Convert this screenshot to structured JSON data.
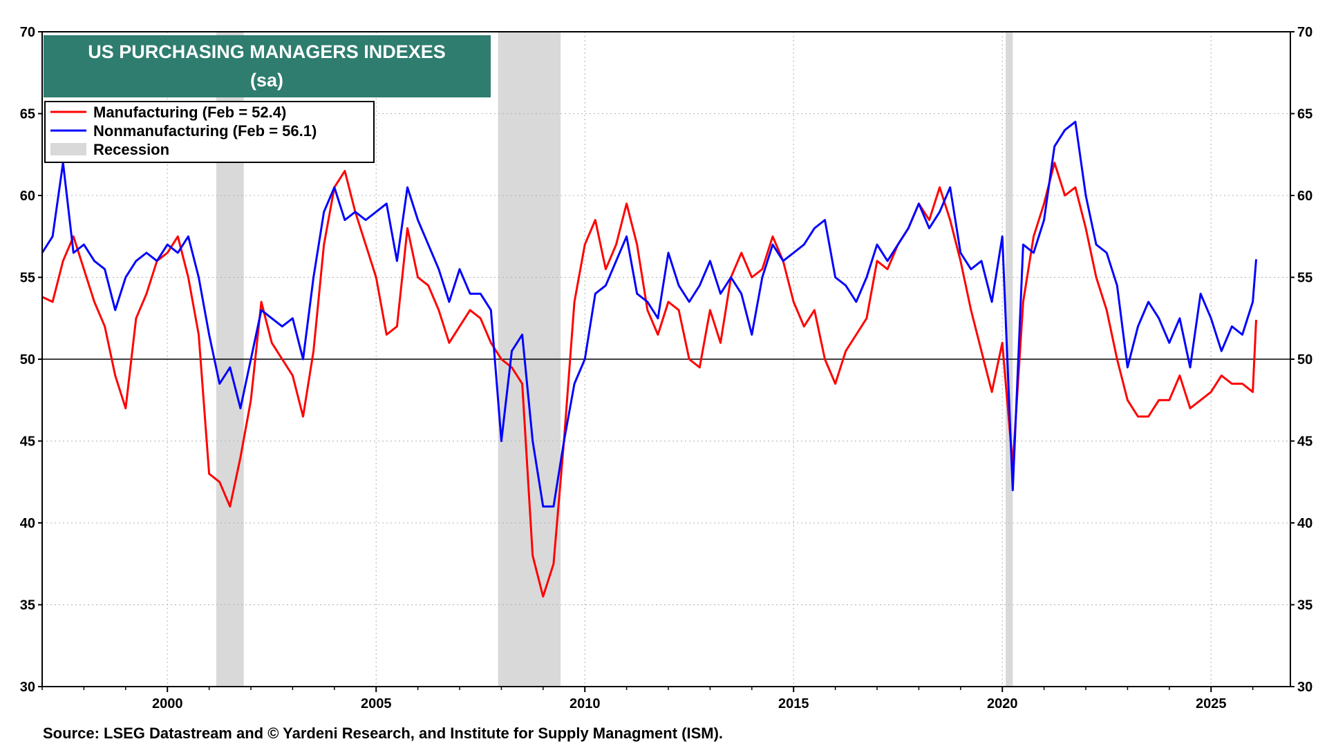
{
  "chart_data": {
    "type": "line",
    "title": "US PURCHASING MANAGERS INDEXES",
    "subtitle": "(sa)",
    "source": "Source: LSEG Datastream and © Yardeni Research, and Institute for Supply Managment (ISM).",
    "ylim": [
      30,
      70
    ],
    "y_ticks": [
      30,
      35,
      40,
      45,
      50,
      55,
      60,
      65,
      70
    ],
    "xlim": [
      1997.0,
      2026.9
    ],
    "x_ticks": [
      2000,
      2005,
      2010,
      2015,
      2020,
      2025
    ],
    "reference_line": 50,
    "grid": true,
    "legend_position": "top-left",
    "legend": [
      {
        "label": "Manufacturing (Feb = 52.4)",
        "color": "#ff0000",
        "kind": "line"
      },
      {
        "label": "Nonmanufacturing  (Feb = 56.1)",
        "color": "#0000ff",
        "kind": "line"
      },
      {
        "label": "Recession",
        "color": "#d9d9d9",
        "kind": "band"
      }
    ],
    "recessions": [
      [
        2001.17,
        2001.83
      ],
      [
        2007.92,
        2009.42
      ],
      [
        2020.08,
        2020.25
      ]
    ],
    "series": [
      {
        "name": "Manufacturing",
        "color": "#ff0000",
        "x": [
          1997.0,
          1997.25,
          1997.5,
          1997.75,
          1998.0,
          1998.25,
          1998.5,
          1998.75,
          1999.0,
          1999.25,
          1999.5,
          1999.75,
          2000.0,
          2000.25,
          2000.5,
          2000.75,
          2001.0,
          2001.25,
          2001.5,
          2001.75,
          2002.0,
          2002.25,
          2002.5,
          2002.75,
          2003.0,
          2003.25,
          2003.5,
          2003.75,
          2004.0,
          2004.25,
          2004.5,
          2004.75,
          2005.0,
          2005.25,
          2005.5,
          2005.75,
          2006.0,
          2006.25,
          2006.5,
          2006.75,
          2007.0,
          2007.25,
          2007.5,
          2007.75,
          2008.0,
          2008.25,
          2008.5,
          2008.75,
          2009.0,
          2009.25,
          2009.5,
          2009.75,
          2010.0,
          2010.25,
          2010.5,
          2010.75,
          2011.0,
          2011.25,
          2011.5,
          2011.75,
          2012.0,
          2012.25,
          2012.5,
          2012.75,
          2013.0,
          2013.25,
          2013.5,
          2013.75,
          2014.0,
          2014.25,
          2014.5,
          2014.75,
          2015.0,
          2015.25,
          2015.5,
          2015.75,
          2016.0,
          2016.25,
          2016.5,
          2016.75,
          2017.0,
          2017.25,
          2017.5,
          2017.75,
          2018.0,
          2018.25,
          2018.5,
          2018.75,
          2019.0,
          2019.25,
          2019.5,
          2019.75,
          2020.0,
          2020.25,
          2020.5,
          2020.75,
          2021.0,
          2021.25,
          2021.5,
          2021.75,
          2022.0,
          2022.25,
          2022.5,
          2022.75,
          2023.0,
          2023.25,
          2023.5,
          2023.75,
          2024.0,
          2024.25,
          2024.5,
          2024.75,
          2025.0,
          2025.25,
          2025.5,
          2025.75,
          2026.0,
          2026.08
        ],
        "values": [
          53.8,
          53.5,
          56.0,
          57.5,
          55.5,
          53.5,
          52.0,
          49.0,
          47.0,
          52.5,
          54.0,
          56.0,
          56.5,
          57.5,
          55.0,
          51.5,
          43.0,
          42.5,
          41.0,
          44.0,
          47.5,
          53.5,
          51.0,
          50.0,
          49.0,
          46.5,
          50.5,
          57.0,
          60.5,
          61.5,
          59.0,
          57.0,
          55.0,
          51.5,
          52.0,
          58.0,
          55.0,
          54.5,
          53.0,
          51.0,
          52.0,
          53.0,
          52.5,
          51.0,
          50.0,
          49.5,
          48.5,
          38.0,
          35.5,
          37.5,
          45.0,
          53.5,
          57.0,
          58.5,
          55.5,
          57.0,
          59.5,
          57.0,
          53.0,
          51.5,
          53.5,
          53.0,
          50.0,
          49.5,
          53.0,
          51.0,
          55.0,
          56.5,
          55.0,
          55.5,
          57.5,
          56.0,
          53.5,
          52.0,
          53.0,
          50.0,
          48.5,
          50.5,
          51.5,
          52.5,
          56.0,
          55.5,
          57.0,
          58.0,
          59.5,
          58.5,
          60.5,
          58.5,
          56.0,
          53.0,
          50.5,
          48.0,
          51.0,
          43.5,
          53.5,
          57.5,
          59.5,
          62.0,
          60.0,
          60.5,
          58.0,
          55.0,
          53.0,
          50.0,
          47.5,
          46.5,
          46.5,
          47.5,
          47.5,
          49.0,
          47.0,
          47.5,
          48.0,
          49.0,
          48.5,
          48.5,
          48.0,
          52.4
        ]
      },
      {
        "name": "Nonmanufacturing",
        "color": "#0000ff",
        "x": [
          1997.0,
          1997.25,
          1997.5,
          1997.75,
          1998.0,
          1998.25,
          1998.5,
          1998.75,
          1999.0,
          1999.25,
          1999.5,
          1999.75,
          2000.0,
          2000.25,
          2000.5,
          2000.75,
          2001.0,
          2001.25,
          2001.5,
          2001.75,
          2002.0,
          2002.25,
          2002.5,
          2002.75,
          2003.0,
          2003.25,
          2003.5,
          2003.75,
          2004.0,
          2004.25,
          2004.5,
          2004.75,
          2005.0,
          2005.25,
          2005.5,
          2005.75,
          2006.0,
          2006.25,
          2006.5,
          2006.75,
          2007.0,
          2007.25,
          2007.5,
          2007.75,
          2008.0,
          2008.25,
          2008.5,
          2008.75,
          2009.0,
          2009.25,
          2009.5,
          2009.75,
          2010.0,
          2010.25,
          2010.5,
          2010.75,
          2011.0,
          2011.25,
          2011.5,
          2011.75,
          2012.0,
          2012.25,
          2012.5,
          2012.75,
          2013.0,
          2013.25,
          2013.5,
          2013.75,
          2014.0,
          2014.25,
          2014.5,
          2014.75,
          2015.0,
          2015.25,
          2015.5,
          2015.75,
          2016.0,
          2016.25,
          2016.5,
          2016.75,
          2017.0,
          2017.25,
          2017.5,
          2017.75,
          2018.0,
          2018.25,
          2018.5,
          2018.75,
          2019.0,
          2019.25,
          2019.5,
          2019.75,
          2020.0,
          2020.25,
          2020.5,
          2020.75,
          2021.0,
          2021.25,
          2021.5,
          2021.75,
          2022.0,
          2022.25,
          2022.5,
          2022.75,
          2023.0,
          2023.25,
          2023.5,
          2023.75,
          2024.0,
          2024.25,
          2024.5,
          2024.75,
          2025.0,
          2025.25,
          2025.5,
          2025.75,
          2026.0,
          2026.08
        ],
        "values": [
          56.5,
          57.5,
          62.0,
          56.5,
          57.0,
          56.0,
          55.5,
          53.0,
          55.0,
          56.0,
          56.5,
          56.0,
          57.0,
          56.5,
          57.5,
          55.0,
          51.5,
          48.5,
          49.5,
          47.0,
          50.0,
          53.0,
          52.5,
          52.0,
          52.5,
          50.0,
          55.0,
          59.0,
          60.5,
          58.5,
          59.0,
          58.5,
          59.0,
          59.5,
          56.0,
          60.5,
          58.5,
          57.0,
          55.5,
          53.5,
          55.5,
          54.0,
          54.0,
          53.0,
          45.0,
          50.5,
          51.5,
          45.0,
          41.0,
          41.0,
          45.0,
          48.5,
          50.0,
          54.0,
          54.5,
          56.0,
          57.5,
          54.0,
          53.5,
          52.5,
          56.5,
          54.5,
          53.5,
          54.5,
          56.0,
          54.0,
          55.0,
          54.0,
          51.5,
          55.0,
          57.0,
          56.0,
          56.5,
          57.0,
          58.0,
          58.5,
          55.0,
          54.5,
          53.5,
          55.0,
          57.0,
          56.0,
          57.0,
          58.0,
          59.5,
          58.0,
          59.0,
          60.5,
          56.5,
          55.5,
          56.0,
          53.5,
          57.5,
          42.0,
          57.0,
          56.5,
          58.5,
          63.0,
          64.0,
          64.5,
          60.0,
          57.0,
          56.5,
          54.5,
          49.5,
          52.0,
          53.5,
          52.5,
          51.0,
          52.5,
          49.5,
          54.0,
          52.5,
          50.5,
          52.0,
          51.5,
          53.5,
          56.1
        ]
      }
    ]
  }
}
